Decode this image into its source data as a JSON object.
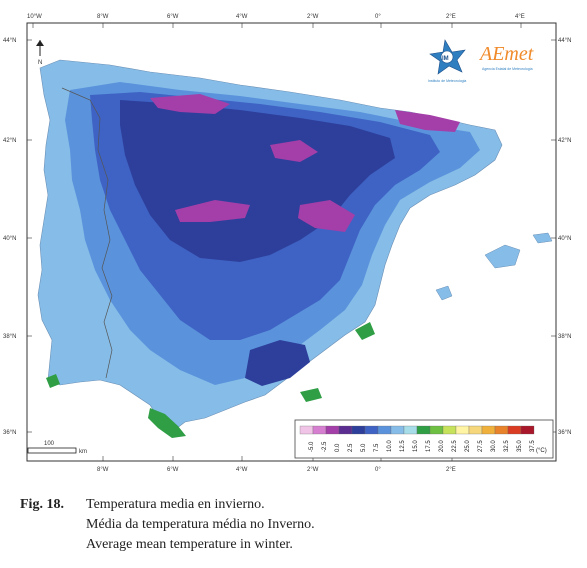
{
  "map": {
    "lat_labels": [
      "44°N",
      "42°N",
      "40°N",
      "38°N",
      "36°N"
    ],
    "lon_labels": [
      "10°W",
      "8°W",
      "6°W",
      "4°W",
      "2°W",
      "0°",
      "2°E",
      "4°E"
    ],
    "north_label": "N",
    "scale_label": "100",
    "scale_unit": "km",
    "logo_im_text": "IM",
    "logo_im_subtitle": "Instituto de Meteorologia",
    "logo_aemet_text": "AEmet",
    "logo_aemet_subtitle": "Agencia Estatal de Meteorología",
    "colors": {
      "land_cold": "#2d3f9b",
      "land_mid": "#3f63c4",
      "land_mild": "#5a93dc",
      "land_warm": "#86bde8",
      "mountain_frost": "#b13aa6",
      "coast_warm": "#27a84a",
      "sea": "#ffffff",
      "frame": "#222222"
    },
    "legend": {
      "unit": "(°C)",
      "labels": [
        "-5.0",
        "-2.5",
        "0.0",
        "2.5",
        "5.0",
        "7.5",
        "10.0",
        "12.5",
        "15.0",
        "17.5",
        "20.0",
        "22.5",
        "25.0",
        "27.5",
        "30.0",
        "32.5",
        "35.0",
        "37.5"
      ],
      "colors": [
        "#f0c4e6",
        "#d67fd0",
        "#a43ea8",
        "#5b2d91",
        "#2d3f9b",
        "#3f63c4",
        "#5a93dc",
        "#86bde8",
        "#a6dde8",
        "#2f9e45",
        "#6ec043",
        "#c6e25a",
        "#fff3a4",
        "#f6d77b",
        "#f0b13c",
        "#e8822b",
        "#d93c23",
        "#a8172a"
      ]
    }
  },
  "caption": {
    "fig_label": "Fig. 18",
    "line1": "Temperatura media en invierno.",
    "line2": "Média da temperatura média no Inverno.",
    "line3": "Average mean temperature in winter."
  }
}
